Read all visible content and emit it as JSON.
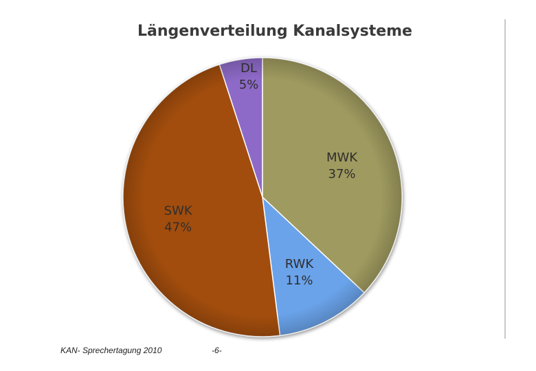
{
  "chart_data": {
    "type": "pie",
    "title": "Längenverteilung Kanalsysteme",
    "slices": [
      {
        "label": "DL",
        "percent_label": "5%",
        "value": 5,
        "color": "#8e6bc8"
      },
      {
        "label": "MWK",
        "percent_label": "37%",
        "value": 37,
        "color": "#9f9a5e"
      },
      {
        "label": "RWK",
        "percent_label": "11%",
        "value": 11,
        "color": "#6aa3ea"
      },
      {
        "label": "SWK",
        "percent_label": "47%",
        "value": 47,
        "color": "#a24e10"
      }
    ]
  },
  "footer": {
    "event": "KAN- Sprechertagung 2010",
    "page": "-6-"
  }
}
